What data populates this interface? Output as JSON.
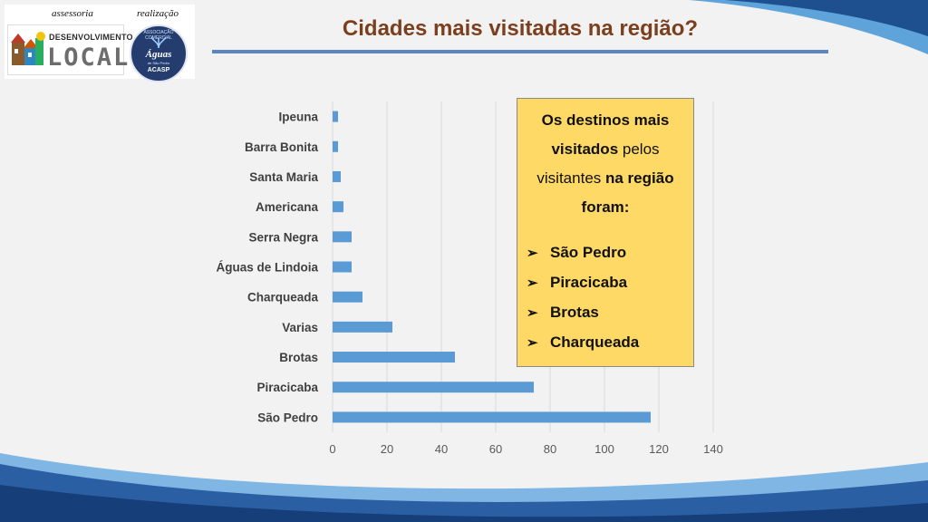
{
  "slide": {
    "title": "Cidades mais visitadas na região?"
  },
  "logos": {
    "assessoria_caption": "assessoria",
    "realizacao_caption": "realização",
    "dl_line1": "DESENVOLVIMENTO",
    "dl_line2": "LOCAL",
    "acasp_arc": "ASSOCIAÇÃO COMERCIAL",
    "acasp_name": "Águas",
    "acasp_sub": "de São Pedro",
    "acasp_abbr": "ACASP"
  },
  "note": {
    "part1_bold": "Os destinos mais visitados",
    "part2": " pelos visitantes ",
    "part3_bold": "na região foram:",
    "items": [
      "São Pedro",
      "Piracicaba",
      "Brotas",
      "Charqueada"
    ]
  },
  "chart_data": {
    "type": "bar",
    "orientation": "horizontal",
    "categories": [
      "Ipeuna",
      "Barra Bonita",
      "Santa Maria",
      "Americana",
      "Serra Negra",
      "Águas de Lindoia",
      "Charqueada",
      "Varias",
      "Brotas",
      "Piracicaba",
      "São Pedro"
    ],
    "values": [
      2,
      2,
      3,
      4,
      7,
      7,
      11,
      22,
      45,
      74,
      117
    ],
    "xlim": [
      0,
      140
    ],
    "xticks": [
      0,
      20,
      40,
      60,
      80,
      100,
      120,
      140
    ],
    "grid": true,
    "bar_color": "#5b9bd5",
    "grid_color": "#d9d9d9"
  },
  "colors": {
    "title": "#7b3f1e",
    "accent_blue": "#5b86c2",
    "note_bg": "#ffd966"
  }
}
